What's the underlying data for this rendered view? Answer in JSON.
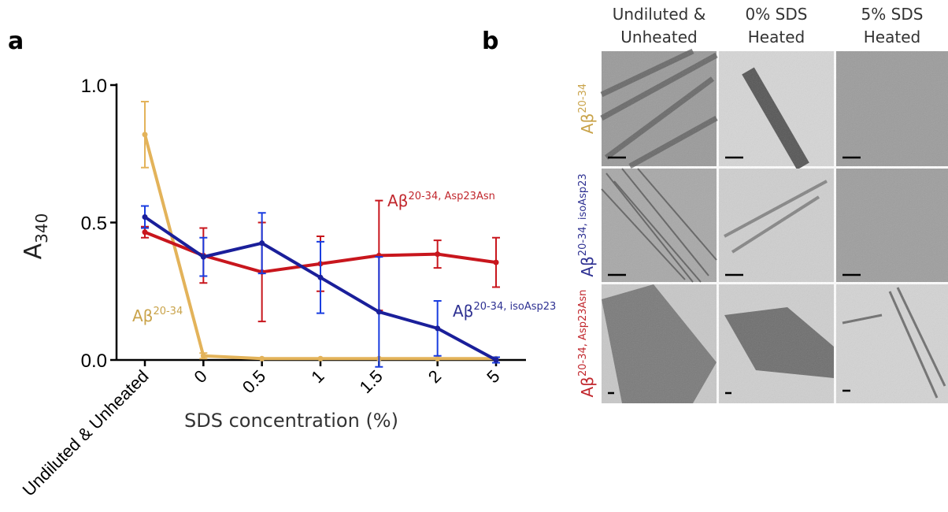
{
  "chart_data": {
    "type": "line",
    "panel_label": "a",
    "y_label": "A",
    "y_label_sub": "340",
    "x_label": "SDS concentration (%)",
    "categories": [
      "Undiluted & Unheated",
      "0",
      "0.5",
      "1",
      "1.5",
      "2",
      "5"
    ],
    "ylim": [
      0,
      1.0
    ],
    "yticks": [
      {
        "value": 0,
        "label": "0.0"
      },
      0.5,
      {
        "value": 1.0,
        "label": "1.0"
      }
    ],
    "series": [
      {
        "name": "Aβ",
        "superscript": "20-34",
        "color": "#e3b35a",
        "label_color": "#c9a34a",
        "values": [
          0.82,
          0.015,
          0.005,
          0.005,
          0.005,
          0.005,
          0.005
        ],
        "errors": [
          0.12,
          0.01,
          null,
          null,
          null,
          null,
          null
        ]
      },
      {
        "name": "Aβ",
        "superscript": "20-34, Asp23Asn",
        "color": "#c8161d",
        "label_color": "#c1272d",
        "values": [
          0.465,
          0.38,
          0.32,
          0.35,
          0.38,
          0.385,
          0.355
        ],
        "errors": [
          0.02,
          0.1,
          0.18,
          0.1,
          0.2,
          0.05,
          0.09
        ]
      },
      {
        "name": "Aβ",
        "superscript": "20-34, isoAsp23",
        "color": "#1a1f9a",
        "label_color": "#2e3192",
        "values": [
          0.52,
          0.375,
          0.425,
          0.3,
          0.175,
          0.115,
          0.0
        ],
        "errors": [
          0.04,
          0.07,
          0.11,
          0.13,
          0.2,
          0.1,
          0.01
        ]
      }
    ]
  },
  "panel_b": {
    "panel_label": "b",
    "columns": [
      [
        "Undiluted &",
        "Unheated"
      ],
      [
        "0% SDS",
        "Heated"
      ],
      [
        "5% SDS",
        "Heated"
      ]
    ],
    "rows": [
      {
        "name": "Aβ",
        "superscript": "20-34",
        "color": "#c9a34a"
      },
      {
        "name": "Aβ",
        "superscript": "20-34, isoAsp23",
        "color": "#2e3192"
      },
      {
        "name": "Aβ",
        "superscript": "20-34, Asp23Asn",
        "color": "#c1272d"
      }
    ]
  }
}
